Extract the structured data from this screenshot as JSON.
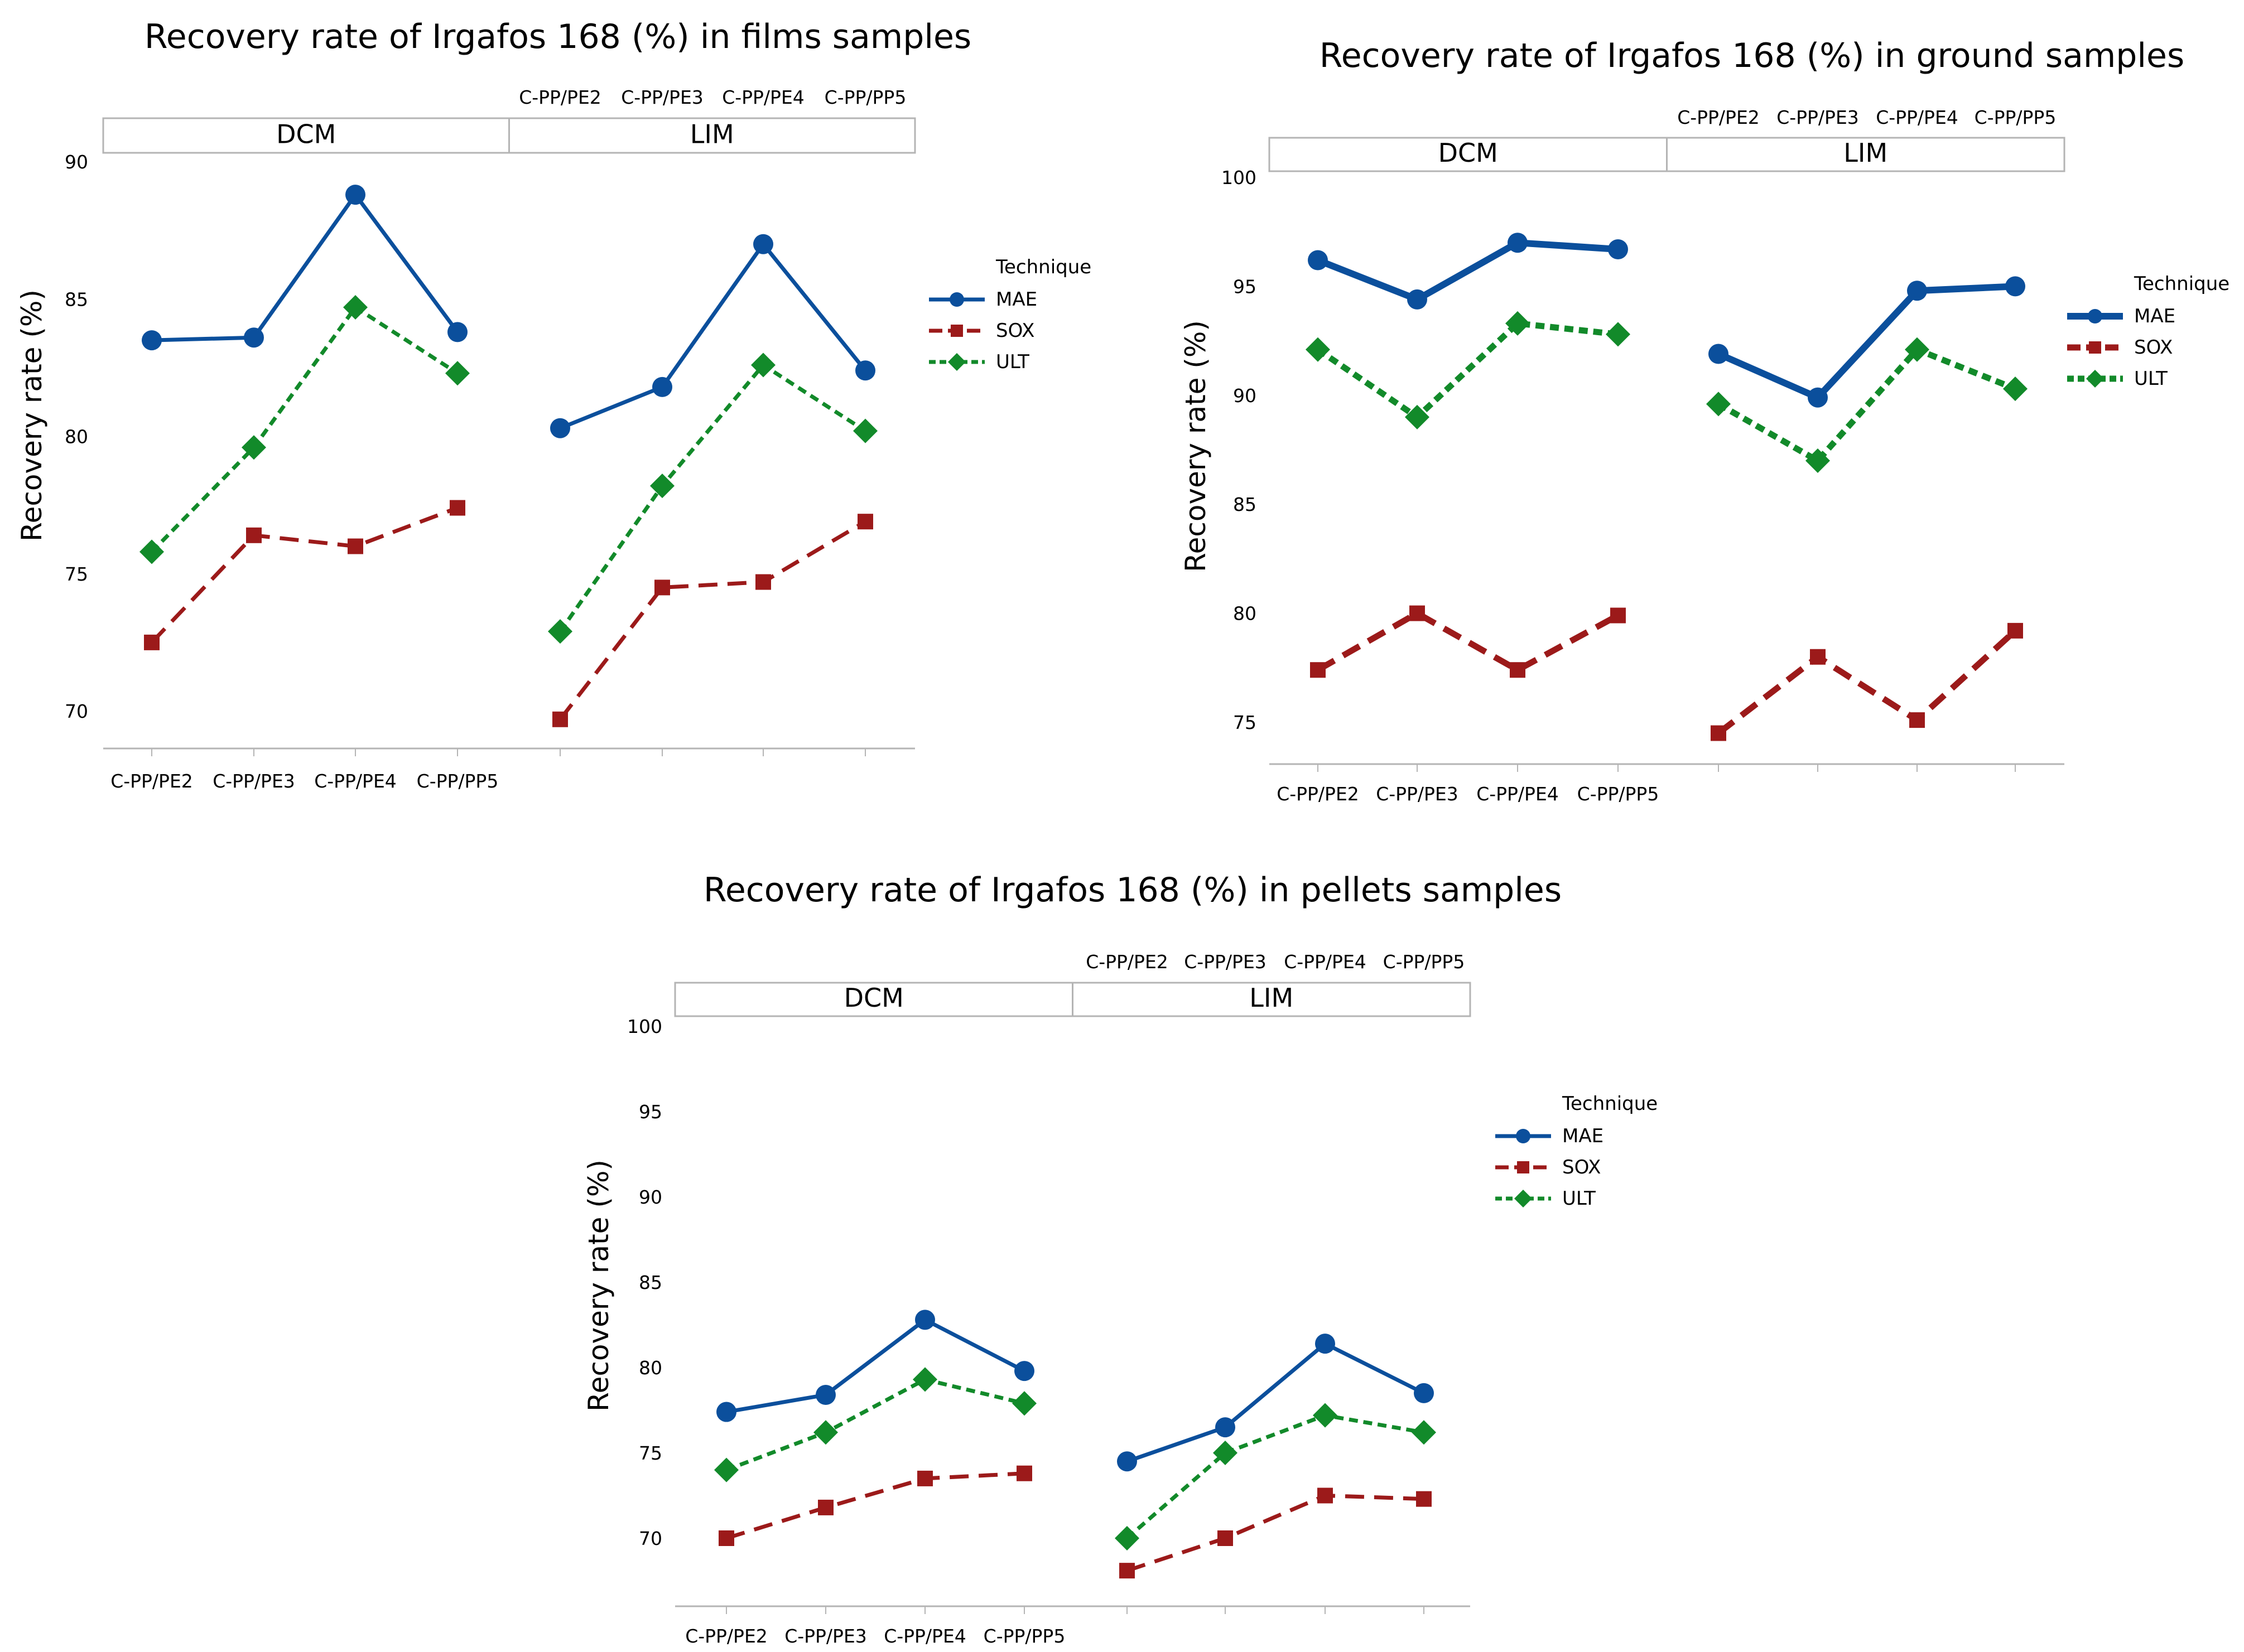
{
  "colors": {
    "MAE": "#0b4f9c",
    "SOX": "#9c1a1a",
    "ULT": "#128a2a",
    "frame": "#b4b4b4"
  },
  "chart_data": [
    {
      "type": "line",
      "title": "Recovery rate of Irgafos 168 (%) in films samples",
      "ylabel": "Recovery rate (%)",
      "ylim": [
        68.8,
        90.3
      ],
      "yticks": [
        "70",
        "75",
        "80",
        "85",
        "90"
      ],
      "panels": [
        "DCM",
        "LIM"
      ],
      "categories": [
        "C-PP/PE2",
        "C-PP/PE3",
        "C-PP/PE4",
        "C-PP/PP5"
      ],
      "legend_title": "Technique",
      "legend_position": "right",
      "series": [
        {
          "name": "MAE",
          "DCM": [
            83.5,
            83.6,
            88.8,
            83.8
          ],
          "LIM": [
            80.3,
            81.8,
            87.0,
            82.4
          ]
        },
        {
          "name": "SOX",
          "DCM": [
            72.5,
            76.4,
            76.0,
            77.4
          ],
          "LIM": [
            69.7,
            74.5,
            74.7,
            76.9
          ]
        },
        {
          "name": "ULT",
          "DCM": [
            75.8,
            79.6,
            84.7,
            82.3
          ],
          "LIM": [
            72.9,
            78.2,
            82.6,
            80.2
          ]
        }
      ]
    },
    {
      "type": "line",
      "title": "Recovery rate of Irgafos 168 (%) in ground samples",
      "ylabel": "Recovery rate (%)",
      "ylim": [
        73.3,
        101.0
      ],
      "yticks": [
        "75",
        "80",
        "85",
        "90",
        "95",
        "100"
      ],
      "panels": [
        "DCM",
        "LIM"
      ],
      "categories": [
        "C-PP/PE2",
        "C-PP/PE3",
        "C-PP/PE4",
        "C-PP/PP5"
      ],
      "legend_title": "Technique",
      "legend_position": "right",
      "series": [
        {
          "name": "MAE",
          "DCM": [
            96.2,
            94.4,
            97.0,
            96.7
          ],
          "LIM": [
            91.9,
            89.9,
            94.8,
            95.0
          ]
        },
        {
          "name": "SOX",
          "DCM": [
            77.4,
            80.0,
            77.4,
            79.9
          ],
          "LIM": [
            74.5,
            78.0,
            75.1,
            79.2
          ]
        },
        {
          "name": "ULT",
          "DCM": [
            92.1,
            89.0,
            93.3,
            92.8
          ],
          "LIM": [
            89.6,
            87.0,
            92.1,
            90.3
          ]
        }
      ]
    },
    {
      "type": "line",
      "title": "Recovery rate of Irgafos 168 (%) in pellets samples",
      "ylabel": "Recovery rate (%)",
      "ylim": [
        66.8,
        101.0
      ],
      "yticks": [
        "70",
        "75",
        "80",
        "85",
        "90",
        "95",
        "100"
      ],
      "panels": [
        "DCM",
        "LIM"
      ],
      "categories": [
        "C-PP/PE2",
        "C-PP/PE3",
        "C-PP/PE4",
        "C-PP/PP5"
      ],
      "legend_title": "Technique",
      "legend_position": "right",
      "series": [
        {
          "name": "MAE",
          "DCM": [
            77.4,
            78.4,
            82.8,
            79.8
          ],
          "LIM": [
            74.5,
            76.5,
            81.4,
            78.5
          ]
        },
        {
          "name": "SOX",
          "DCM": [
            70.0,
            71.8,
            73.5,
            73.8
          ],
          "LIM": [
            68.1,
            70.0,
            72.5,
            72.3
          ]
        },
        {
          "name": "ULT",
          "DCM": [
            74.0,
            76.2,
            79.3,
            77.9
          ],
          "LIM": [
            70.0,
            75.0,
            77.2,
            76.2
          ]
        }
      ]
    }
  ]
}
